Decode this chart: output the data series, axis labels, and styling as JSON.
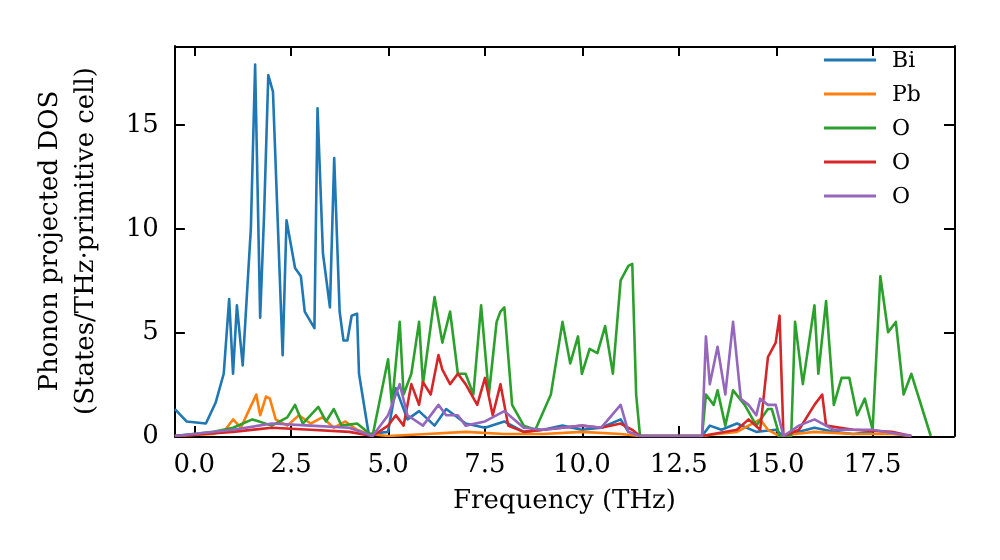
{
  "chart_data": {
    "type": "line",
    "xlabel": "Frequency (THz)",
    "ylabel": "Phonon projected DOS\n(States/THz·primitive cell)",
    "xlim": [
      -0.5,
      19.6
    ],
    "ylim": [
      0,
      18.8
    ],
    "xticks": [
      {
        "value": 0,
        "label": "0.0"
      },
      {
        "value": 2.5,
        "label": "2.5"
      },
      {
        "value": 5,
        "label": "5.0"
      },
      {
        "value": 7.5,
        "label": "7.5"
      },
      {
        "value": 10,
        "label": "10.0"
      },
      {
        "value": 12.5,
        "label": "12.5"
      },
      {
        "value": 15,
        "label": "15.0"
      },
      {
        "value": 17.5,
        "label": "17.5"
      }
    ],
    "yticks": [
      0,
      5,
      10,
      15
    ],
    "grid": false,
    "legend": "top right",
    "marker": "none",
    "line_style": "solid",
    "series": [
      {
        "name": "Bi",
        "color": "#1f77b4",
        "x": [
          -0.5,
          -0.2,
          0.3,
          0.55,
          0.76,
          0.9,
          1.0,
          1.1,
          1.25,
          1.46,
          1.57,
          1.7,
          1.8,
          1.91,
          2.03,
          2.28,
          2.38,
          2.6,
          2.75,
          2.85,
          3.1,
          3.18,
          3.32,
          3.5,
          3.61,
          3.75,
          3.85,
          3.95,
          4.06,
          4.2,
          4.25,
          4.5,
          5.0,
          5.2,
          5.5,
          5.8,
          6.2,
          6.5,
          7.0,
          7.5,
          8.0,
          8.5,
          9.0,
          9.5,
          10.0,
          10.5,
          11.0,
          11.2,
          11.5,
          13.1,
          13.3,
          13.6,
          14.0,
          14.5,
          15.0,
          15.2,
          15.6,
          16.0,
          16.5,
          17.0,
          17.5
        ],
        "values": [
          1.3,
          0.7,
          0.6,
          1.6,
          3.0,
          6.6,
          3.0,
          6.3,
          3.4,
          10,
          17.9,
          5.7,
          10.6,
          17.4,
          16.6,
          3.9,
          10.4,
          8.1,
          7.7,
          6.0,
          5.2,
          15.8,
          8.8,
          6.2,
          13.4,
          6.0,
          4.6,
          4.6,
          5.8,
          5.9,
          3.0,
          0.1,
          0.2,
          2.3,
          0.8,
          1.2,
          0.5,
          1.3,
          0.6,
          0.4,
          0.7,
          0.2,
          0.3,
          0.5,
          0.3,
          0.4,
          0.8,
          0.2,
          0,
          0,
          0.5,
          0.3,
          0.6,
          0.2,
          0.3,
          0,
          0.2,
          0.4,
          0.2,
          0.1,
          0.2
        ]
      },
      {
        "name": "Pb",
        "color": "#ff7f0e",
        "x": [
          -0.5,
          0.5,
          0.8,
          1.0,
          1.2,
          1.4,
          1.6,
          1.7,
          1.85,
          1.95,
          2.1,
          2.4,
          2.7,
          3.0,
          3.3,
          3.6,
          3.9,
          4.2,
          4.5,
          5.0,
          6.0,
          7.0,
          8.0,
          9.0,
          10.0,
          11.0,
          11.5,
          13.1,
          13.5,
          14.0,
          14.3,
          14.6,
          14.8,
          15.1,
          15.5,
          16.0,
          17.0,
          18.0,
          18.5
        ],
        "values": [
          0,
          0.1,
          0.3,
          0.8,
          0.4,
          1.2,
          2.0,
          1.0,
          1.9,
          1.8,
          0.8,
          0.5,
          1.0,
          0.6,
          0.9,
          0.4,
          0.7,
          0.3,
          0.1,
          0,
          0.1,
          0.2,
          0.1,
          0.1,
          0.2,
          0.1,
          0,
          0,
          0.1,
          0.2,
          0.5,
          0.8,
          0.3,
          0,
          0.1,
          0.2,
          0.1,
          0.1,
          0
        ]
      },
      {
        "name": "O",
        "color": "#2ca02c",
        "x": [
          -0.5,
          0.5,
          1.0,
          1.5,
          2.0,
          2.4,
          2.6,
          2.8,
          3.2,
          3.4,
          3.6,
          3.8,
          4.2,
          4.6,
          5.0,
          5.1,
          5.3,
          5.4,
          5.6,
          5.8,
          5.9,
          6.2,
          6.4,
          6.6,
          6.8,
          7.0,
          7.2,
          7.4,
          7.6,
          7.8,
          7.9,
          8.0,
          8.2,
          8.5,
          8.8,
          9.2,
          9.5,
          9.7,
          9.9,
          10.0,
          10.2,
          10.4,
          10.6,
          10.8,
          11.0,
          11.2,
          11.3,
          11.4,
          11.5,
          13.1,
          13.2,
          13.4,
          13.5,
          13.7,
          13.9,
          14.2,
          14.5,
          14.8,
          14.9,
          15.1,
          15.4,
          15.5,
          15.7,
          16.0,
          16.1,
          16.3,
          16.5,
          16.7,
          16.9,
          17.1,
          17.3,
          17.5,
          17.7,
          17.9,
          18.1,
          18.3,
          18.5,
          19.0
        ],
        "values": [
          0,
          0.2,
          0.4,
          0.8,
          0.5,
          0.9,
          1.5,
          0.6,
          1.4,
          0.7,
          1.3,
          0.5,
          0.6,
          0,
          3.7,
          1.5,
          5.5,
          2.0,
          3.0,
          5.5,
          2.5,
          6.7,
          4.5,
          6.0,
          3.0,
          3.0,
          2.0,
          6.3,
          2.0,
          5.5,
          6.0,
          6.2,
          1.5,
          0.5,
          0.3,
          2.0,
          5.5,
          3.5,
          4.8,
          3.0,
          4.2,
          4.0,
          5.3,
          3.0,
          7.5,
          8.2,
          8.3,
          2.0,
          0,
          0,
          2.0,
          1.5,
          2.2,
          0.5,
          2.2,
          1.5,
          0.5,
          1.3,
          1.3,
          0,
          0,
          5.5,
          2.5,
          6.3,
          3.0,
          6.5,
          1.5,
          2.8,
          2.8,
          1.0,
          1.8,
          0.3,
          7.7,
          5.0,
          5.5,
          2.0,
          3.0,
          0
        ]
      },
      {
        "name": "O",
        "color": "#d62728",
        "x": [
          -0.5,
          1.0,
          2.0,
          3.0,
          4.0,
          4.6,
          5.0,
          5.2,
          5.4,
          5.6,
          5.8,
          5.9,
          6.1,
          6.3,
          6.4,
          6.6,
          6.8,
          7.0,
          7.3,
          7.5,
          7.7,
          7.9,
          8.1,
          8.5,
          9.0,
          9.5,
          10.0,
          10.5,
          11.0,
          11.3,
          11.5,
          13.1,
          14.0,
          14.3,
          14.6,
          14.8,
          15.0,
          15.1,
          15.2,
          15.6,
          16.0,
          16.2,
          16.3,
          17.0,
          18.0,
          18.5
        ],
        "values": [
          0,
          0.2,
          0.4,
          0.3,
          0.2,
          0,
          0.5,
          1.0,
          0.5,
          2.5,
          1.5,
          2.6,
          2.0,
          3.9,
          3.2,
          2.5,
          3.0,
          2.5,
          1.5,
          2.8,
          1.0,
          2.5,
          0.5,
          0.2,
          0.3,
          0.4,
          0.5,
          0.4,
          0.6,
          0.3,
          0,
          0,
          0.3,
          0.8,
          0.3,
          3.8,
          4.5,
          5.8,
          0,
          0.3,
          1.5,
          2.0,
          0.5,
          0.3,
          0.2,
          0
        ]
      },
      {
        "name": "O",
        "color": "#9467bd",
        "x": [
          -0.5,
          1.0,
          2.0,
          3.0,
          4.0,
          4.6,
          5.0,
          5.3,
          5.5,
          5.9,
          6.3,
          6.5,
          6.8,
          7.0,
          7.5,
          8.0,
          8.5,
          9.0,
          10.0,
          10.5,
          11.0,
          11.2,
          11.5,
          13.1,
          13.2,
          13.3,
          13.5,
          13.7,
          13.9,
          14.1,
          14.3,
          14.5,
          14.6,
          14.8,
          15.0,
          15.2,
          15.6,
          16.0,
          16.5,
          17.5,
          18.5
        ],
        "values": [
          0,
          0.3,
          0.6,
          0.5,
          0.4,
          0,
          1.0,
          2.5,
          1.0,
          0.5,
          1.5,
          1.0,
          1.0,
          0.5,
          0.7,
          1.2,
          0.4,
          0.3,
          0.5,
          0.4,
          1.5,
          0.2,
          0,
          0,
          4.8,
          2.5,
          4.3,
          2.0,
          5.5,
          1.8,
          1.5,
          1.0,
          1.8,
          1.5,
          1.5,
          0,
          0.5,
          0.8,
          0.3,
          0.3,
          0
        ]
      }
    ]
  }
}
